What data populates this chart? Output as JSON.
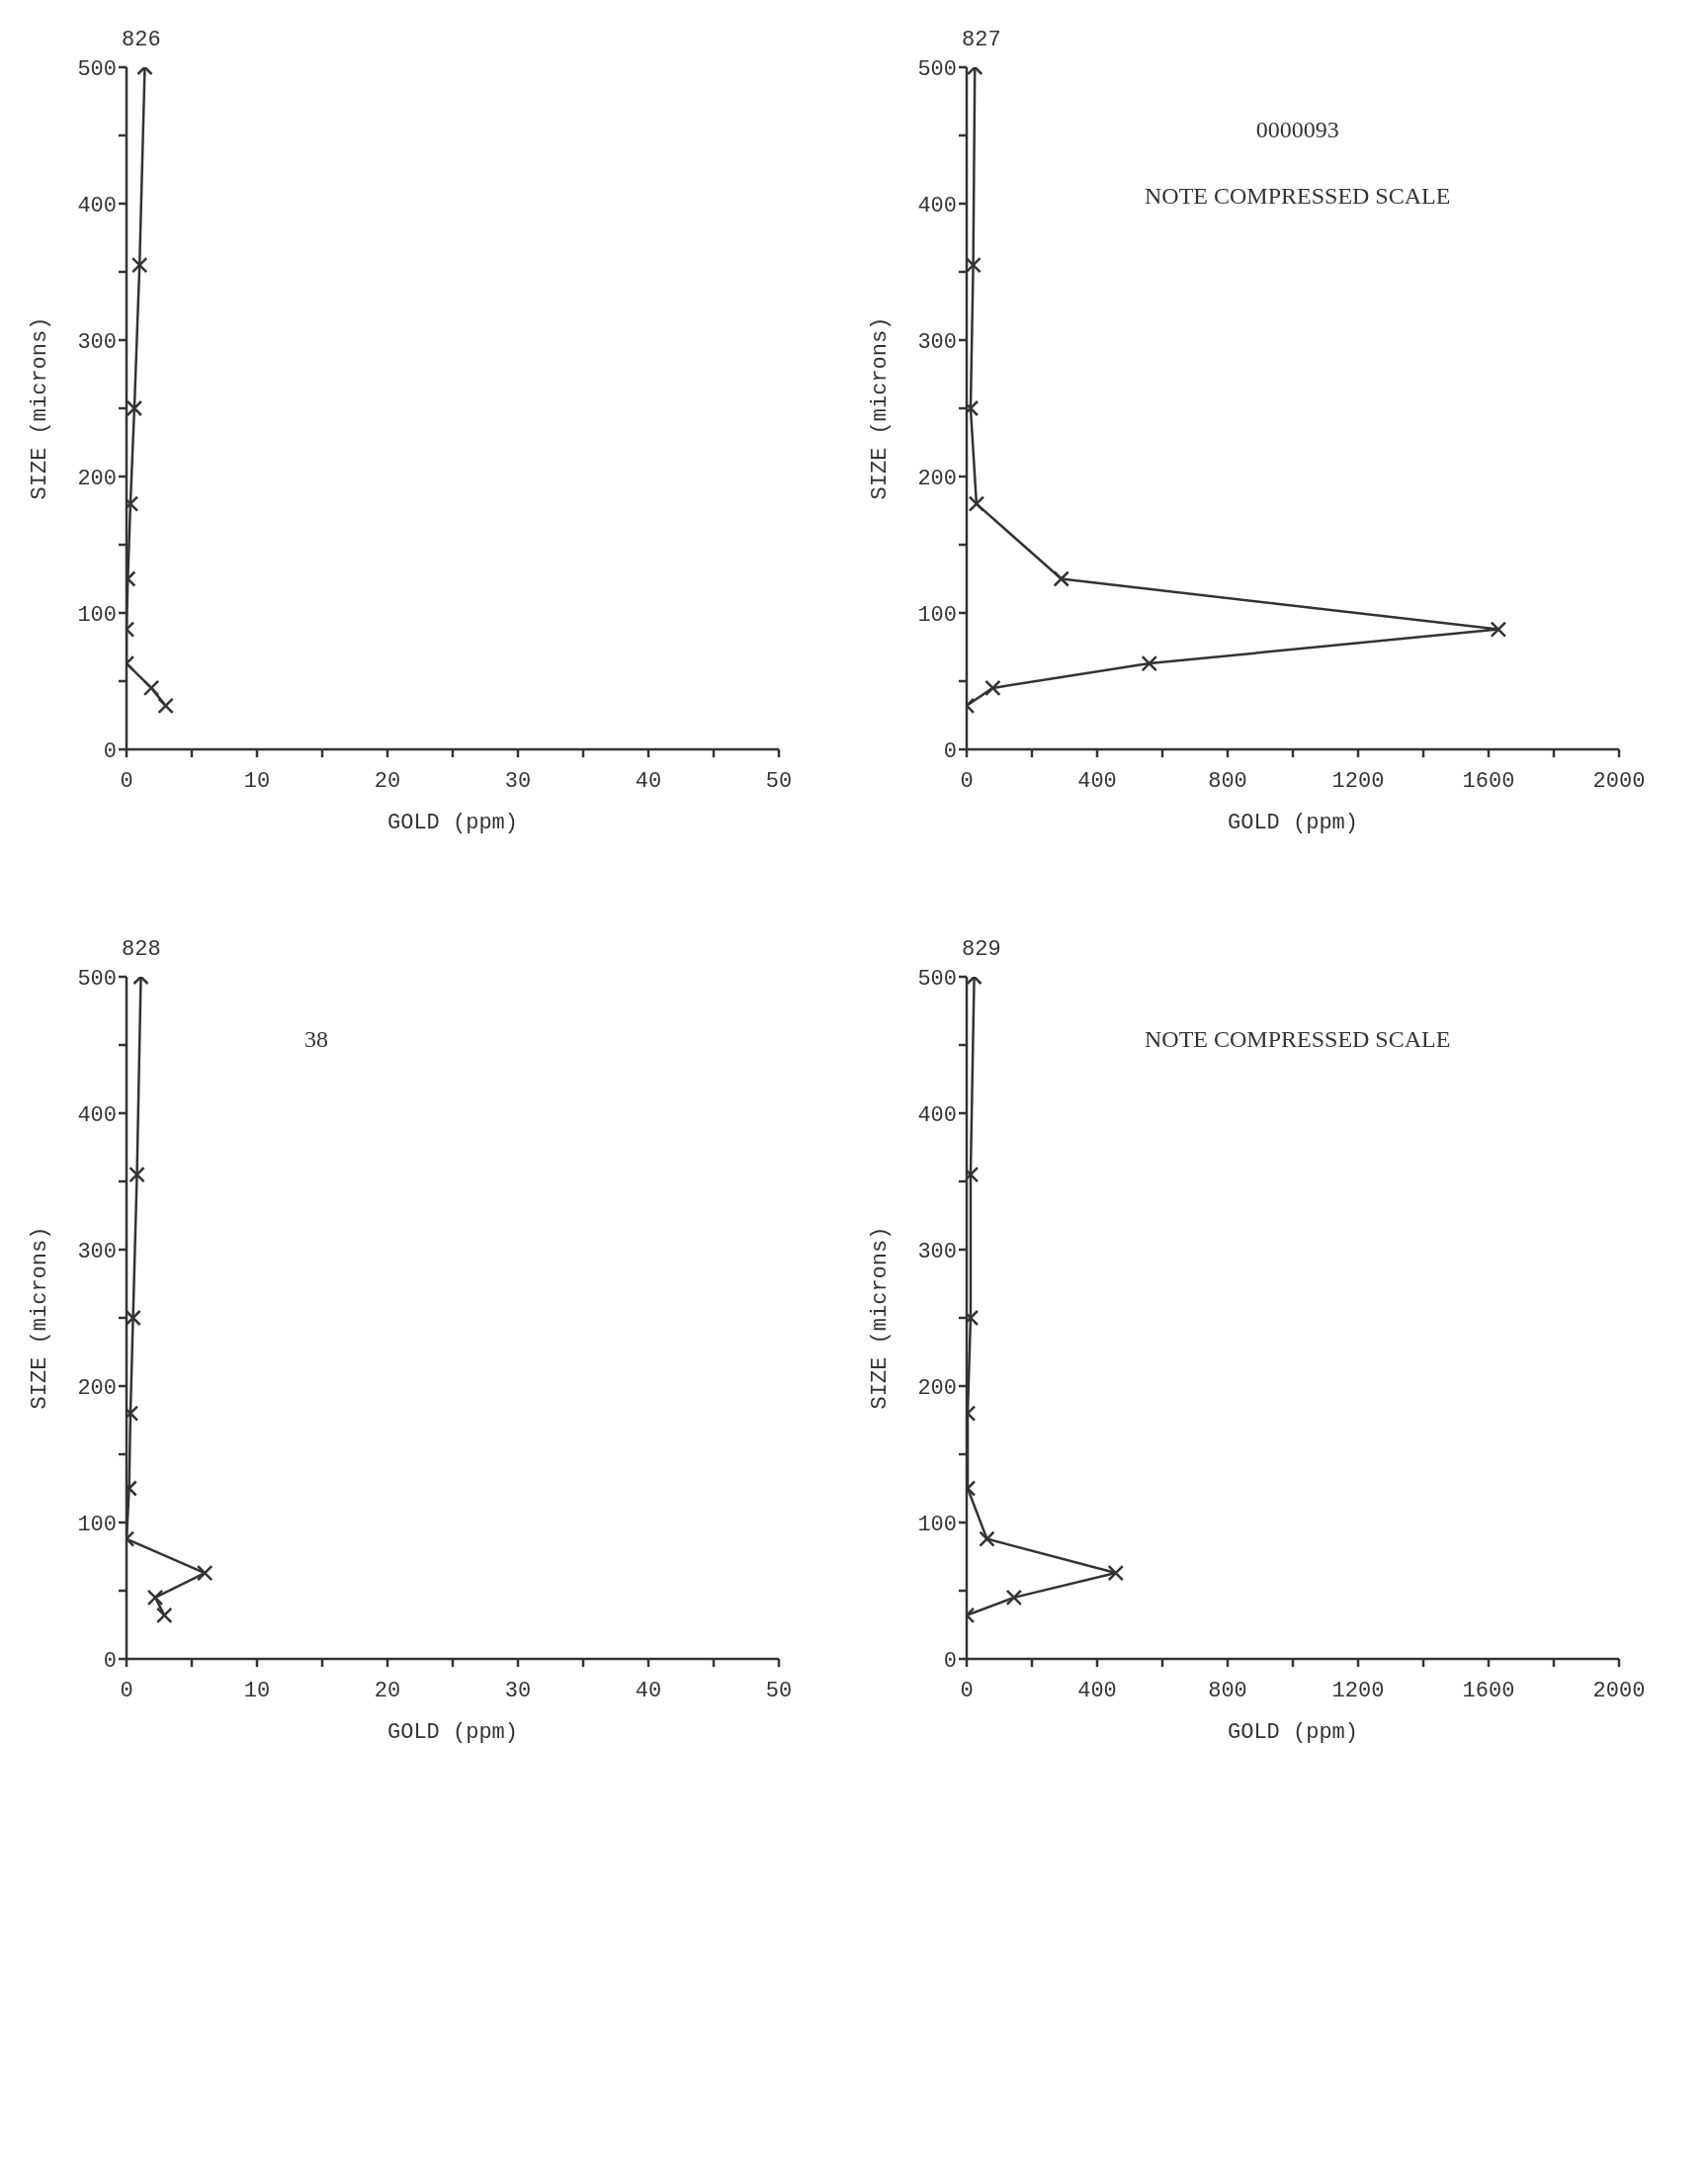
{
  "chart_data": [
    {
      "type": "line",
      "title": "826",
      "xlabel": "GOLD (ppm)",
      "ylabel": "SIZE (microns)",
      "color": "#333333",
      "marker": "cross",
      "line_style": "solid",
      "x": [
        1.4,
        1.0,
        0.6,
        0.3,
        0.1,
        0,
        0,
        1.9,
        3.0
      ],
      "values": [
        500,
        355,
        250,
        180,
        125,
        88,
        63,
        45,
        32
      ],
      "xlim": [
        0,
        50
      ],
      "xticks": [
        0,
        {
          "value": 5,
          "label": null
        },
        10,
        {
          "value": 15,
          "label": null
        },
        20,
        {
          "value": 25,
          "label": null
        },
        30,
        {
          "value": 35,
          "label": null
        },
        40,
        {
          "value": 45,
          "label": null
        },
        50
      ],
      "ylim": [
        0,
        500
      ],
      "yticks": [
        0,
        {
          "value": 50,
          "label": null
        },
        100,
        {
          "value": 150,
          "label": null
        },
        200,
        {
          "value": 250,
          "label": null
        },
        300,
        {
          "value": 350,
          "label": null
        },
        400,
        {
          "value": 450,
          "label": null
        },
        500
      ]
    },
    {
      "type": "line",
      "title": "827",
      "xlabel": "GOLD (ppm)",
      "ylabel": "SIZE (microns)",
      "color": "#333333",
      "marker": "cross",
      "line_style": "solid",
      "annotations": [
        "0000093",
        "NOTE COMPRESSED SCALE"
      ],
      "x": [
        25,
        20,
        12,
        30,
        290,
        1630,
        560,
        80,
        0
      ],
      "values": [
        500,
        355,
        250,
        180,
        125,
        88,
        63,
        45,
        32
      ],
      "xlim": [
        0,
        2000
      ],
      "xticks": [
        0,
        {
          "value": 200,
          "label": null
        },
        400,
        {
          "value": 600,
          "label": null
        },
        800,
        {
          "value": 1000,
          "label": null
        },
        1200,
        {
          "value": 1400,
          "label": null
        },
        1600,
        {
          "value": 1800,
          "label": null
        },
        2000
      ],
      "ylim": [
        0,
        500
      ],
      "yticks": [
        0,
        {
          "value": 50,
          "label": null
        },
        100,
        {
          "value": 150,
          "label": null
        },
        200,
        {
          "value": 250,
          "label": null
        },
        300,
        {
          "value": 350,
          "label": null
        },
        400,
        {
          "value": 450,
          "label": null
        },
        500
      ]
    },
    {
      "type": "line",
      "title": "828",
      "xlabel": "GOLD (ppm)",
      "ylabel": "SIZE (microns)",
      "color": "#333333",
      "marker": "cross",
      "line_style": "solid",
      "annotations": [
        "38"
      ],
      "x": [
        1.1,
        0.8,
        0.5,
        0.3,
        0.2,
        0,
        6.0,
        2.2,
        2.9
      ],
      "values": [
        500,
        355,
        250,
        180,
        125,
        88,
        63,
        45,
        32
      ],
      "xlim": [
        0,
        50
      ],
      "xticks": [
        0,
        {
          "value": 5,
          "label": null
        },
        10,
        {
          "value": 15,
          "label": null
        },
        20,
        {
          "value": 25,
          "label": null
        },
        30,
        {
          "value": 35,
          "label": null
        },
        40,
        {
          "value": 45,
          "label": null
        },
        50
      ],
      "ylim": [
        0,
        500
      ],
      "yticks": [
        0,
        {
          "value": 50,
          "label": null
        },
        100,
        {
          "value": 150,
          "label": null
        },
        200,
        {
          "value": 250,
          "label": null
        },
        300,
        {
          "value": 350,
          "label": null
        },
        400,
        {
          "value": 450,
          "label": null
        },
        500
      ]
    },
    {
      "type": "line",
      "title": "829",
      "xlabel": "GOLD (ppm)",
      "ylabel": "SIZE (microns)",
      "color": "#333333",
      "marker": "cross",
      "line_style": "solid",
      "annotations": [
        "NOTE COMPRESSED SCALE"
      ],
      "x": [
        23,
        12,
        12,
        3,
        3,
        62,
        457,
        145,
        0
      ],
      "values": [
        500,
        355,
        250,
        180,
        125,
        88,
        63,
        45,
        32
      ],
      "xlim": [
        0,
        2000
      ],
      "xticks": [
        0,
        {
          "value": 200,
          "label": null
        },
        400,
        {
          "value": 600,
          "label": null
        },
        800,
        {
          "value": 1000,
          "label": null
        },
        1200,
        {
          "value": 1400,
          "label": null
        },
        1600,
        {
          "value": 1800,
          "label": null
        },
        2000
      ],
      "ylim": [
        0,
        500
      ],
      "yticks": [
        0,
        {
          "value": 50,
          "label": null
        },
        100,
        {
          "value": 150,
          "label": null
        },
        200,
        {
          "value": 250,
          "label": null
        },
        300,
        {
          "value": 350,
          "label": null
        },
        400,
        {
          "value": 450,
          "label": null
        },
        500
      ]
    }
  ]
}
